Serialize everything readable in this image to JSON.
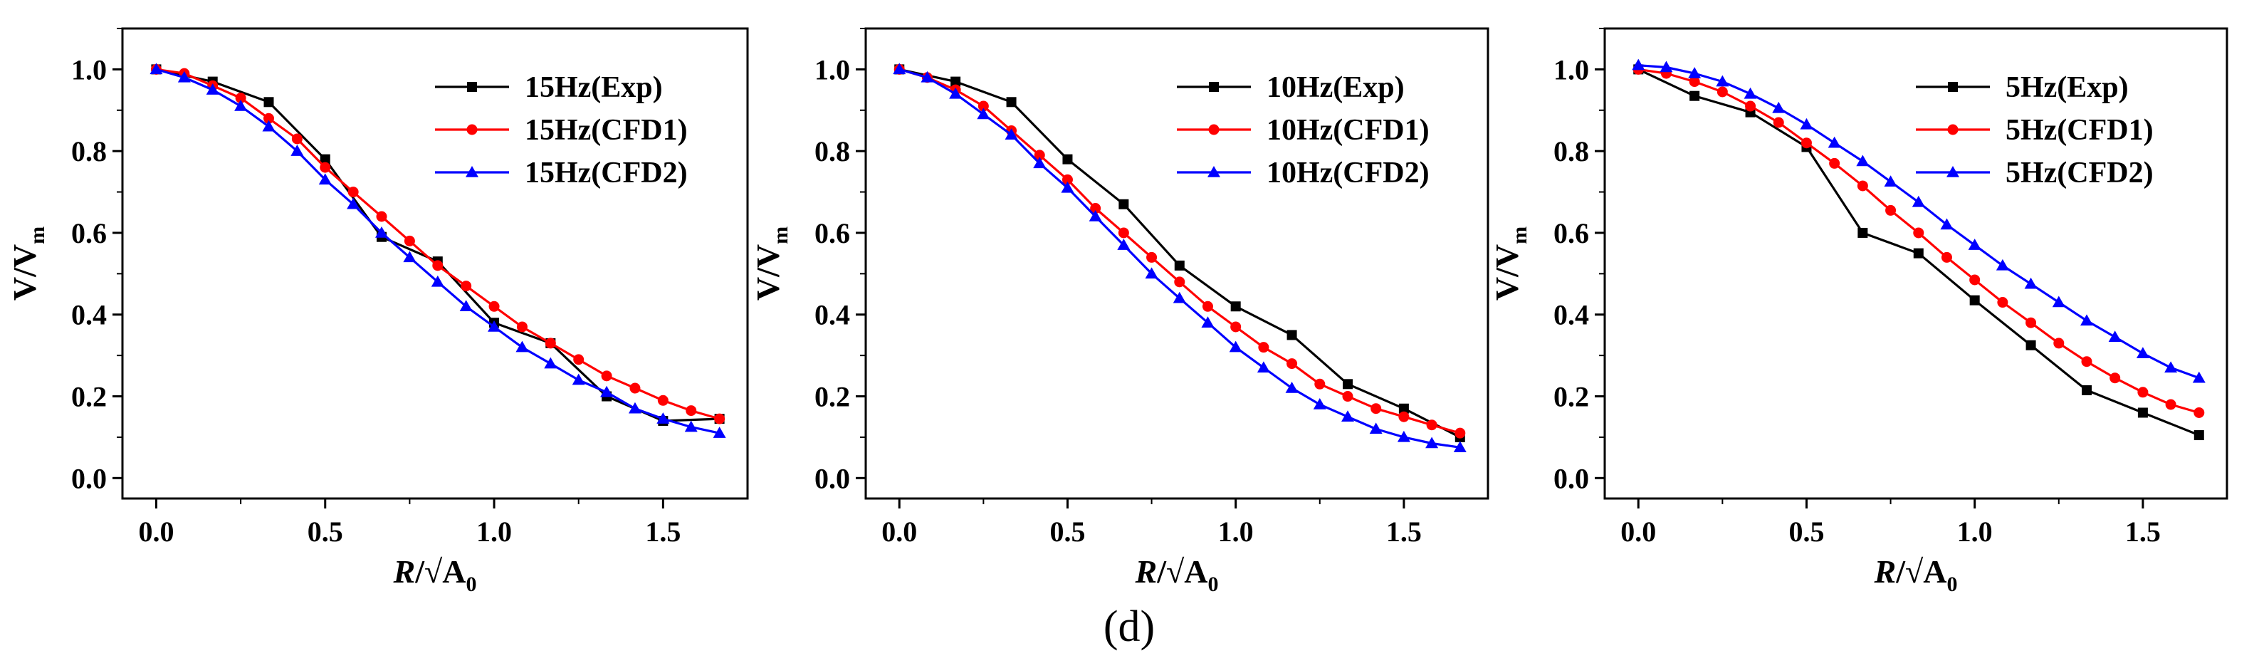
{
  "figure": {
    "panel_label": "(d)"
  },
  "chart_data": [
    {
      "type": "line",
      "title": "",
      "xlabel": "R/√A0",
      "ylabel": "V/Vm",
      "xlim": [
        -0.1,
        1.75
      ],
      "ylim": [
        -0.05,
        1.1
      ],
      "xticks": [
        0.0,
        0.5,
        1.0,
        1.5
      ],
      "xtick_labels": [
        "0.0",
        "0.5",
        "1.0",
        "1.5"
      ],
      "yticks": [
        0.0,
        0.2,
        0.4,
        0.6,
        0.8,
        1.0
      ],
      "ytick_labels": [
        "0.0",
        "0.2",
        "0.4",
        "0.6",
        "0.8",
        "1.0"
      ],
      "legend": "top-right",
      "series": [
        {
          "name": "15Hz(Exp)",
          "color": "#000000",
          "marker": "square",
          "x": [
            0,
            0.167,
            0.333,
            0.5,
            0.667,
            0.833,
            1.0,
            1.167,
            1.333,
            1.5,
            1.667
          ],
          "y": [
            1.0,
            0.97,
            0.92,
            0.78,
            0.59,
            0.53,
            0.38,
            0.33,
            0.2,
            0.14,
            0.145
          ]
        },
        {
          "name": "15Hz(CFD1)",
          "color": "#ff0000",
          "marker": "circle",
          "x": [
            0,
            0.083,
            0.167,
            0.25,
            0.333,
            0.417,
            0.5,
            0.583,
            0.667,
            0.75,
            0.833,
            0.917,
            1.0,
            1.083,
            1.167,
            1.25,
            1.333,
            1.417,
            1.5,
            1.583,
            1.667
          ],
          "y": [
            1.0,
            0.99,
            0.96,
            0.93,
            0.88,
            0.83,
            0.76,
            0.7,
            0.64,
            0.58,
            0.52,
            0.47,
            0.42,
            0.37,
            0.33,
            0.29,
            0.25,
            0.22,
            0.19,
            0.165,
            0.145
          ]
        },
        {
          "name": "15Hz(CFD2)",
          "color": "#0000ff",
          "marker": "triangle",
          "x": [
            0,
            0.083,
            0.167,
            0.25,
            0.333,
            0.417,
            0.5,
            0.583,
            0.667,
            0.75,
            0.833,
            0.917,
            1.0,
            1.083,
            1.167,
            1.25,
            1.333,
            1.417,
            1.5,
            1.583,
            1.667
          ],
          "y": [
            1.0,
            0.98,
            0.95,
            0.91,
            0.86,
            0.8,
            0.73,
            0.67,
            0.6,
            0.54,
            0.48,
            0.42,
            0.37,
            0.32,
            0.28,
            0.24,
            0.21,
            0.17,
            0.145,
            0.125,
            0.11
          ]
        }
      ]
    },
    {
      "type": "line",
      "title": "",
      "xlabel": "R/√A0",
      "ylabel": "V/Vm",
      "xlim": [
        -0.1,
        1.75
      ],
      "ylim": [
        -0.05,
        1.1
      ],
      "xticks": [
        0.0,
        0.5,
        1.0,
        1.5
      ],
      "xtick_labels": [
        "0.0",
        "0.5",
        "1.0",
        "1.5"
      ],
      "yticks": [
        0.0,
        0.2,
        0.4,
        0.6,
        0.8,
        1.0
      ],
      "ytick_labels": [
        "0.0",
        "0.2",
        "0.4",
        "0.6",
        "0.8",
        "1.0"
      ],
      "legend": "top-right",
      "series": [
        {
          "name": "10Hz(Exp)",
          "color": "#000000",
          "marker": "square",
          "x": [
            0,
            0.167,
            0.333,
            0.5,
            0.667,
            0.833,
            1.0,
            1.167,
            1.333,
            1.5,
            1.667
          ],
          "y": [
            1.0,
            0.97,
            0.92,
            0.78,
            0.67,
            0.52,
            0.42,
            0.35,
            0.23,
            0.17,
            0.1
          ]
        },
        {
          "name": "10Hz(CFD1)",
          "color": "#ff0000",
          "marker": "circle",
          "x": [
            0,
            0.083,
            0.167,
            0.25,
            0.333,
            0.417,
            0.5,
            0.583,
            0.667,
            0.75,
            0.833,
            0.917,
            1.0,
            1.083,
            1.167,
            1.25,
            1.333,
            1.417,
            1.5,
            1.583,
            1.667
          ],
          "y": [
            1.0,
            0.98,
            0.95,
            0.91,
            0.85,
            0.79,
            0.73,
            0.66,
            0.6,
            0.54,
            0.48,
            0.42,
            0.37,
            0.32,
            0.28,
            0.23,
            0.2,
            0.17,
            0.15,
            0.13,
            0.11
          ]
        },
        {
          "name": "10Hz(CFD2)",
          "color": "#0000ff",
          "marker": "triangle",
          "x": [
            0,
            0.083,
            0.167,
            0.25,
            0.333,
            0.417,
            0.5,
            0.583,
            0.667,
            0.75,
            0.833,
            0.917,
            1.0,
            1.083,
            1.167,
            1.25,
            1.333,
            1.417,
            1.5,
            1.583,
            1.667
          ],
          "y": [
            1.0,
            0.98,
            0.94,
            0.89,
            0.84,
            0.77,
            0.71,
            0.64,
            0.57,
            0.5,
            0.44,
            0.38,
            0.32,
            0.27,
            0.22,
            0.18,
            0.15,
            0.12,
            0.1,
            0.085,
            0.075
          ]
        }
      ]
    },
    {
      "type": "line",
      "title": "",
      "xlabel": "R/√A0",
      "ylabel": "V/Vm",
      "xlim": [
        -0.1,
        1.75
      ],
      "ylim": [
        -0.05,
        1.1
      ],
      "xticks": [
        0.0,
        0.5,
        1.0,
        1.5
      ],
      "xtick_labels": [
        "0.0",
        "0.5",
        "1.0",
        "1.5"
      ],
      "yticks": [
        0.0,
        0.2,
        0.4,
        0.6,
        0.8,
        1.0
      ],
      "ytick_labels": [
        "0.0",
        "0.2",
        "0.4",
        "0.6",
        "0.8",
        "1.0"
      ],
      "legend": "top-right",
      "series": [
        {
          "name": "5Hz(Exp)",
          "color": "#000000",
          "marker": "square",
          "x": [
            0,
            0.167,
            0.333,
            0.5,
            0.667,
            0.833,
            1.0,
            1.167,
            1.333,
            1.5,
            1.667
          ],
          "y": [
            1.0,
            0.935,
            0.895,
            0.81,
            0.6,
            0.55,
            0.435,
            0.325,
            0.215,
            0.16,
            0.105
          ]
        },
        {
          "name": "5Hz(CFD1)",
          "color": "#ff0000",
          "marker": "circle",
          "x": [
            0,
            0.083,
            0.167,
            0.25,
            0.333,
            0.417,
            0.5,
            0.583,
            0.667,
            0.75,
            0.833,
            0.917,
            1.0,
            1.083,
            1.167,
            1.25,
            1.333,
            1.417,
            1.5,
            1.583,
            1.667
          ],
          "y": [
            1.0,
            0.99,
            0.97,
            0.945,
            0.91,
            0.87,
            0.82,
            0.77,
            0.715,
            0.655,
            0.6,
            0.54,
            0.485,
            0.43,
            0.38,
            0.33,
            0.285,
            0.245,
            0.21,
            0.18,
            0.16
          ]
        },
        {
          "name": "5Hz(CFD2)",
          "color": "#0000ff",
          "marker": "triangle",
          "x": [
            0,
            0.083,
            0.167,
            0.25,
            0.333,
            0.417,
            0.5,
            0.583,
            0.667,
            0.75,
            0.833,
            0.917,
            1.0,
            1.083,
            1.167,
            1.25,
            1.333,
            1.417,
            1.5,
            1.583,
            1.667
          ],
          "y": [
            1.01,
            1.005,
            0.99,
            0.97,
            0.94,
            0.905,
            0.865,
            0.82,
            0.775,
            0.725,
            0.675,
            0.62,
            0.57,
            0.52,
            0.475,
            0.43,
            0.385,
            0.345,
            0.305,
            0.27,
            0.245
          ]
        }
      ]
    }
  ]
}
